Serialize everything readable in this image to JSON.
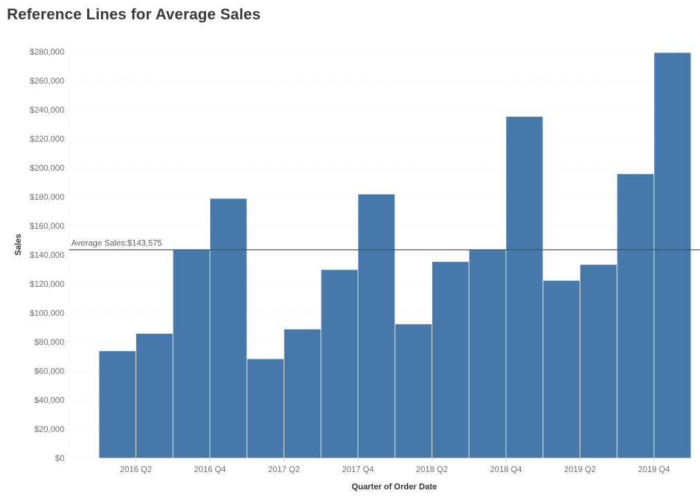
{
  "colors": {
    "bar": "#4678aa",
    "bar_separator": "#e8eef5",
    "grid": "#e6e6e6",
    "reference_line": "#4a4f57",
    "tick_text": "#6a6f78"
  },
  "chart_data": {
    "type": "bar",
    "title": "Reference Lines for Average Sales",
    "xlabel": "Quarter of Order Date",
    "ylabel": "Sales",
    "ylim": [
      0,
      290000
    ],
    "y_ticks": [
      0,
      20000,
      40000,
      60000,
      80000,
      100000,
      120000,
      140000,
      160000,
      180000,
      200000,
      220000,
      240000,
      260000,
      280000
    ],
    "y_tick_labels": [
      "$0",
      "$20,000",
      "$40,000",
      "$60,000",
      "$80,000",
      "$100,000",
      "$120,000",
      "$140,000",
      "$160,000",
      "$180,000",
      "$200,000",
      "$220,000",
      "$240,000",
      "$260,000",
      "$280,000"
    ],
    "categories": [
      "2016 Q1",
      "2016 Q2",
      "2016 Q3",
      "2016 Q4",
      "2017 Q1",
      "2017 Q2",
      "2017 Q3",
      "2017 Q4",
      "2018 Q1",
      "2018 Q2",
      "2018 Q3",
      "2018 Q4",
      "2019 Q1",
      "2019 Q2",
      "2019 Q3",
      "2019 Q4"
    ],
    "x_tick_labels": [
      "2016 Q2",
      "2016 Q4",
      "2017 Q2",
      "2017 Q4",
      "2018 Q2",
      "2018 Q4",
      "2019 Q2",
      "2019 Q4"
    ],
    "values": [
      74000,
      86000,
      144000,
      179000,
      68500,
      89000,
      130000,
      182000,
      92500,
      135500,
      144000,
      235500,
      122500,
      133500,
      196000,
      279500
    ],
    "grid": true,
    "reference_line": {
      "label": "Average Sales:$143,575",
      "value": 143575
    }
  }
}
